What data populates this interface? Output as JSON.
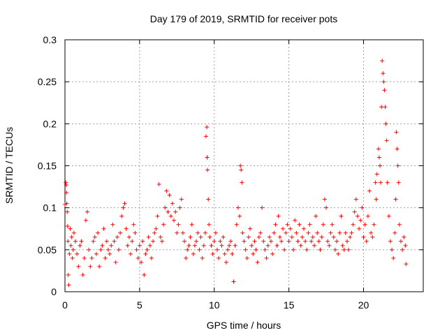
{
  "chart_data": {
    "type": "scatter",
    "title": "Day 179 of 2019, SRMTID for receiver pots",
    "xlabel": "GPS time / hours",
    "ylabel": "SRMTID / TECUs",
    "xlim": [
      0,
      24
    ],
    "ylim": [
      0,
      0.3
    ],
    "xticks": [
      0,
      5,
      10,
      15,
      20
    ],
    "xtick_labels": [
      "0",
      "5",
      "10",
      "15",
      "20"
    ],
    "yticks": [
      0,
      0.05,
      0.1,
      0.15,
      0.2,
      0.25,
      0.3
    ],
    "ytick_labels": [
      "0",
      "0.05",
      "0.1",
      "0.15",
      "0.2",
      "0.25",
      "0.3"
    ],
    "grid": true,
    "marker": "+",
    "series": [
      {
        "name": "SRMTID",
        "color": "#ff0000",
        "points": [
          [
            0.0,
            0.104
          ],
          [
            0.05,
            0.13
          ],
          [
            0.08,
            0.127
          ],
          [
            0.1,
            0.118
          ],
          [
            0.12,
            0.105
          ],
          [
            0.15,
            0.095
          ],
          [
            0.18,
            0.078
          ],
          [
            0.2,
            0.06
          ],
          [
            0.22,
            0.02
          ],
          [
            0.25,
            0.008
          ],
          [
            0.3,
            0.045
          ],
          [
            0.35,
            0.075
          ],
          [
            0.4,
            0.055
          ],
          [
            0.45,
            0.065
          ],
          [
            0.5,
            0.04
          ],
          [
            0.55,
            0.05
          ],
          [
            0.6,
            0.07
          ],
          [
            0.7,
            0.06
          ],
          [
            0.8,
            0.045
          ],
          [
            0.9,
            0.03
          ],
          [
            1.0,
            0.055
          ],
          [
            1.1,
            0.06
          ],
          [
            1.2,
            0.02
          ],
          [
            1.3,
            0.04
          ],
          [
            1.4,
            0.085
          ],
          [
            1.5,
            0.095
          ],
          [
            1.6,
            0.05
          ],
          [
            1.7,
            0.03
          ],
          [
            1.8,
            0.04
          ],
          [
            1.9,
            0.06
          ],
          [
            2.0,
            0.065
          ],
          [
            2.1,
            0.045
          ],
          [
            2.2,
            0.07
          ],
          [
            2.3,
            0.03
          ],
          [
            2.4,
            0.05
          ],
          [
            2.5,
            0.055
          ],
          [
            2.6,
            0.075
          ],
          [
            2.7,
            0.04
          ],
          [
            2.8,
            0.06
          ],
          [
            2.9,
            0.05
          ],
          [
            3.0,
            0.045
          ],
          [
            3.1,
            0.055
          ],
          [
            3.2,
            0.08
          ],
          [
            3.3,
            0.06
          ],
          [
            3.4,
            0.035
          ],
          [
            3.5,
            0.065
          ],
          [
            3.6,
            0.05
          ],
          [
            3.7,
            0.07
          ],
          [
            3.8,
            0.09
          ],
          [
            3.9,
            0.1
          ],
          [
            4.0,
            0.105
          ],
          [
            4.1,
            0.075
          ],
          [
            4.2,
            0.055
          ],
          [
            4.3,
            0.065
          ],
          [
            4.4,
            0.045
          ],
          [
            4.5,
            0.06
          ],
          [
            4.6,
            0.08
          ],
          [
            4.7,
            0.07
          ],
          [
            4.8,
            0.05
          ],
          [
            4.9,
            0.04
          ],
          [
            5.0,
            0.055
          ],
          [
            5.1,
            0.035
          ],
          [
            5.2,
            0.06
          ],
          [
            5.3,
            0.02
          ],
          [
            5.4,
            0.045
          ],
          [
            5.5,
            0.05
          ],
          [
            5.6,
            0.065
          ],
          [
            5.7,
            0.055
          ],
          [
            5.8,
            0.04
          ],
          [
            5.9,
            0.06
          ],
          [
            6.0,
            0.07
          ],
          [
            6.1,
            0.075
          ],
          [
            6.2,
            0.09
          ],
          [
            6.3,
            0.128
          ],
          [
            6.4,
            0.065
          ],
          [
            6.5,
            0.06
          ],
          [
            6.6,
            0.08
          ],
          [
            6.7,
            0.1
          ],
          [
            6.8,
            0.12
          ],
          [
            6.9,
            0.095
          ],
          [
            7.0,
            0.115
          ],
          [
            7.1,
            0.09
          ],
          [
            7.2,
            0.105
          ],
          [
            7.3,
            0.085
          ],
          [
            7.4,
            0.095
          ],
          [
            7.5,
            0.07
          ],
          [
            7.6,
            0.08
          ],
          [
            7.7,
            0.1
          ],
          [
            7.8,
            0.11
          ],
          [
            7.9,
            0.07
          ],
          [
            8.0,
            0.06
          ],
          [
            8.1,
            0.04
          ],
          [
            8.2,
            0.05
          ],
          [
            8.3,
            0.055
          ],
          [
            8.4,
            0.065
          ],
          [
            8.5,
            0.08
          ],
          [
            8.6,
            0.045
          ],
          [
            8.7,
            0.055
          ],
          [
            8.8,
            0.06
          ],
          [
            8.9,
            0.07
          ],
          [
            9.0,
            0.05
          ],
          [
            9.1,
            0.065
          ],
          [
            9.2,
            0.04
          ],
          [
            9.3,
            0.055
          ],
          [
            9.4,
            0.07
          ],
          [
            9.45,
            0.185
          ],
          [
            9.5,
            0.196
          ],
          [
            9.52,
            0.16
          ],
          [
            9.55,
            0.145
          ],
          [
            9.6,
            0.11
          ],
          [
            9.65,
            0.08
          ],
          [
            9.7,
            0.065
          ],
          [
            9.8,
            0.055
          ],
          [
            9.9,
            0.045
          ],
          [
            10.0,
            0.06
          ],
          [
            10.1,
            0.07
          ],
          [
            10.2,
            0.05
          ],
          [
            10.3,
            0.04
          ],
          [
            10.4,
            0.06
          ],
          [
            10.5,
            0.055
          ],
          [
            10.6,
            0.065
          ],
          [
            10.7,
            0.045
          ],
          [
            10.8,
            0.035
          ],
          [
            10.9,
            0.05
          ],
          [
            11.0,
            0.055
          ],
          [
            11.1,
            0.06
          ],
          [
            11.2,
            0.045
          ],
          [
            11.3,
            0.012
          ],
          [
            11.4,
            0.055
          ],
          [
            11.5,
            0.08
          ],
          [
            11.6,
            0.1
          ],
          [
            11.7,
            0.09
          ],
          [
            11.75,
            0.15
          ],
          [
            11.8,
            0.145
          ],
          [
            11.85,
            0.13
          ],
          [
            11.9,
            0.07
          ],
          [
            12.0,
            0.06
          ],
          [
            12.1,
            0.05
          ],
          [
            12.2,
            0.04
          ],
          [
            12.3,
            0.065
          ],
          [
            12.4,
            0.075
          ],
          [
            12.5,
            0.055
          ],
          [
            12.6,
            0.045
          ],
          [
            12.7,
            0.06
          ],
          [
            12.8,
            0.05
          ],
          [
            12.9,
            0.035
          ],
          [
            13.0,
            0.065
          ],
          [
            13.1,
            0.07
          ],
          [
            13.2,
            0.1
          ],
          [
            13.3,
            0.06
          ],
          [
            13.4,
            0.05
          ],
          [
            13.5,
            0.04
          ],
          [
            13.6,
            0.055
          ],
          [
            13.7,
            0.065
          ],
          [
            13.8,
            0.06
          ],
          [
            13.9,
            0.045
          ],
          [
            14.0,
            0.07
          ],
          [
            14.1,
            0.08
          ],
          [
            14.2,
            0.055
          ],
          [
            14.3,
            0.09
          ],
          [
            14.4,
            0.065
          ],
          [
            14.5,
            0.06
          ],
          [
            14.6,
            0.075
          ],
          [
            14.7,
            0.05
          ],
          [
            14.8,
            0.07
          ],
          [
            14.9,
            0.08
          ],
          [
            15.0,
            0.06
          ],
          [
            15.1,
            0.075
          ],
          [
            15.2,
            0.065
          ],
          [
            15.3,
            0.05
          ],
          [
            15.4,
            0.085
          ],
          [
            15.5,
            0.07
          ],
          [
            15.6,
            0.06
          ],
          [
            15.7,
            0.08
          ],
          [
            15.8,
            0.055
          ],
          [
            15.9,
            0.065
          ],
          [
            16.0,
            0.075
          ],
          [
            16.1,
            0.06
          ],
          [
            16.2,
            0.05
          ],
          [
            16.3,
            0.07
          ],
          [
            16.4,
            0.08
          ],
          [
            16.5,
            0.06
          ],
          [
            16.6,
            0.065
          ],
          [
            16.7,
            0.055
          ],
          [
            16.8,
            0.09
          ],
          [
            16.9,
            0.07
          ],
          [
            17.0,
            0.06
          ],
          [
            17.1,
            0.05
          ],
          [
            17.2,
            0.065
          ],
          [
            17.3,
            0.08
          ],
          [
            17.4,
            0.11
          ],
          [
            17.5,
            0.1
          ],
          [
            17.6,
            0.06
          ],
          [
            17.7,
            0.055
          ],
          [
            17.8,
            0.07
          ],
          [
            17.9,
            0.08
          ],
          [
            18.0,
            0.065
          ],
          [
            18.1,
            0.05
          ],
          [
            18.2,
            0.06
          ],
          [
            18.3,
            0.045
          ],
          [
            18.4,
            0.07
          ],
          [
            18.5,
            0.09
          ],
          [
            18.6,
            0.055
          ],
          [
            18.7,
            0.05
          ],
          [
            18.8,
            0.07
          ],
          [
            18.9,
            0.06
          ],
          [
            19.0,
            0.05
          ],
          [
            19.1,
            0.065
          ],
          [
            19.2,
            0.07
          ],
          [
            19.3,
            0.08
          ],
          [
            19.4,
            0.095
          ],
          [
            19.5,
            0.11
          ],
          [
            19.6,
            0.09
          ],
          [
            19.7,
            0.075
          ],
          [
            19.8,
            0.085
          ],
          [
            19.9,
            0.1
          ],
          [
            20.0,
            0.065
          ],
          [
            20.1,
            0.08
          ],
          [
            20.2,
            0.06
          ],
          [
            20.3,
            0.09
          ],
          [
            20.4,
            0.12
          ],
          [
            20.5,
            0.07
          ],
          [
            20.6,
            0.065
          ],
          [
            20.7,
            0.08
          ],
          [
            20.8,
            0.13
          ],
          [
            20.85,
            0.11
          ],
          [
            20.9,
            0.14
          ],
          [
            21.0,
            0.17
          ],
          [
            21.05,
            0.16
          ],
          [
            21.1,
            0.15
          ],
          [
            21.15,
            0.13
          ],
          [
            21.2,
            0.22
          ],
          [
            21.25,
            0.275
          ],
          [
            21.3,
            0.26
          ],
          [
            21.35,
            0.25
          ],
          [
            21.4,
            0.24
          ],
          [
            21.45,
            0.22
          ],
          [
            21.5,
            0.2
          ],
          [
            21.55,
            0.18
          ],
          [
            21.6,
            0.13
          ],
          [
            21.7,
            0.09
          ],
          [
            21.8,
            0.06
          ],
          [
            21.9,
            0.05
          ],
          [
            22.0,
            0.04
          ],
          [
            22.1,
            0.07
          ],
          [
            22.15,
            0.11
          ],
          [
            22.2,
            0.19
          ],
          [
            22.25,
            0.17
          ],
          [
            22.3,
            0.15
          ],
          [
            22.35,
            0.13
          ],
          [
            22.4,
            0.08
          ],
          [
            22.5,
            0.06
          ],
          [
            22.6,
            0.05
          ],
          [
            22.7,
            0.065
          ],
          [
            22.8,
            0.055
          ],
          [
            22.85,
            0.033
          ]
        ]
      }
    ]
  }
}
